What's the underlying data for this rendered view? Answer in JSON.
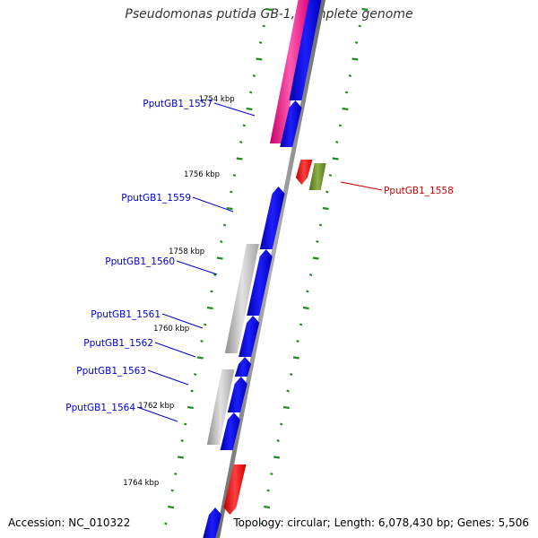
{
  "header": {
    "title": "Pseudomonas putida GB-1, complete genome"
  },
  "footer": {
    "accession": "Accession: NC_010322",
    "summary": "Topology: circular; Length: 6,078,430 bp; Genes: 5,506"
  },
  "colors": {
    "cds": "#0000ee",
    "rna": "#ff1a8c",
    "gray": "#bdbdbd",
    "olive": "#6b8e23",
    "red": "#ff1010",
    "tick": "#228b22",
    "label_blue": "#0000cc",
    "label_red": "#cc0000"
  },
  "ticks": [
    "1754 kbp",
    "1756 kbp",
    "1758 kbp",
    "1760 kbp",
    "1762 kbp",
    "1764 kbp"
  ],
  "genes": [
    {
      "label": "PputGB1_1557",
      "color": "label_blue"
    },
    {
      "label": "PputGB1_1558",
      "color": "label_red"
    },
    {
      "label": "PputGB1_1559",
      "color": "label_blue"
    },
    {
      "label": "PputGB1_1560",
      "color": "label_blue"
    },
    {
      "label": "PputGB1_1561",
      "color": "label_blue"
    },
    {
      "label": "PputGB1_1562",
      "color": "label_blue"
    },
    {
      "label": "PputGB1_1563",
      "color": "label_blue"
    },
    {
      "label": "PputGB1_1564",
      "color": "label_blue"
    }
  ]
}
